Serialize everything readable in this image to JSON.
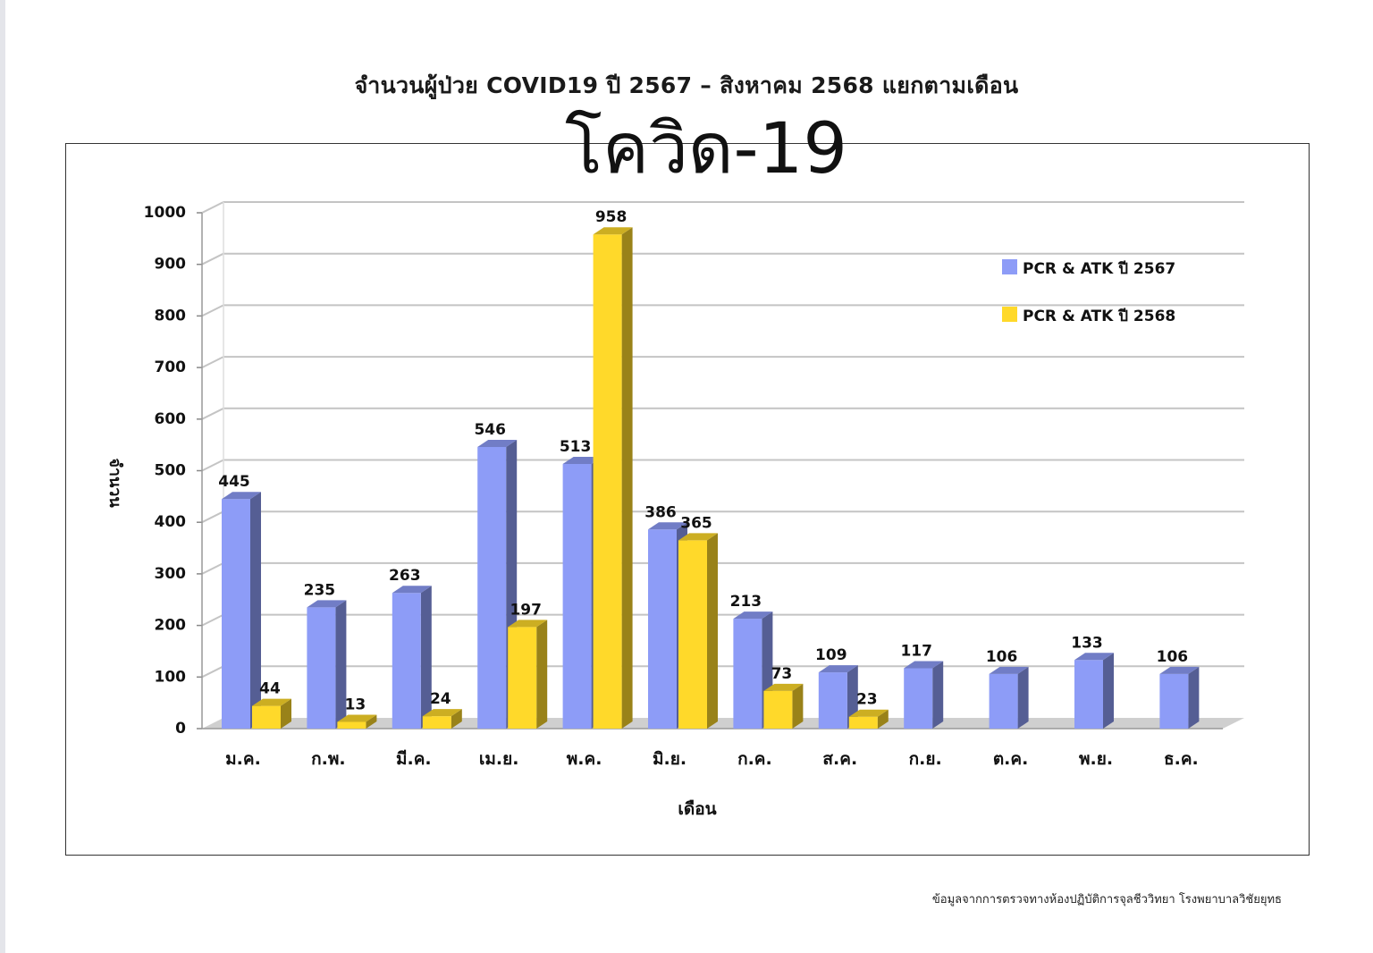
{
  "page_title": "จำนวนผู้ป่วย COVID19 ปี 2567 – สิงหาคม 2568 แยกตามเดือน",
  "chart_heading": "โควิด-19",
  "footnote": "ข้อมูลจากการตรวจทางห้องปฏิบัติการจุลชีววิทยา โรงพยาบาลวิชัยยุทธ",
  "chart_data": {
    "type": "bar",
    "title": "โควิด-19",
    "xlabel": "เดือน",
    "ylabel": "จำนวน",
    "ylim": [
      0,
      1000
    ],
    "yticks": [
      0,
      100,
      200,
      300,
      400,
      500,
      600,
      700,
      800,
      900,
      1000
    ],
    "grid": true,
    "legend_position": "top-right",
    "categories": [
      "ม.ค.",
      "ก.พ.",
      "มี.ค.",
      "เม.ย.",
      "พ.ค.",
      "มิ.ย.",
      "ก.ค.",
      "ส.ค.",
      "ก.ย.",
      "ต.ค.",
      "พ.ย.",
      "ธ.ค."
    ],
    "series": [
      {
        "name": "PCR & ATK ปี 2567",
        "color": "#8d9cf7",
        "values": [
          445,
          235,
          263,
          546,
          513,
          386,
          213,
          109,
          117,
          106,
          133,
          106
        ]
      },
      {
        "name": "PCR & ATK ปี 2568",
        "color": "#ffd92a",
        "values": [
          44,
          13,
          24,
          197,
          958,
          365,
          73,
          23,
          null,
          null,
          null,
          null
        ]
      }
    ]
  }
}
